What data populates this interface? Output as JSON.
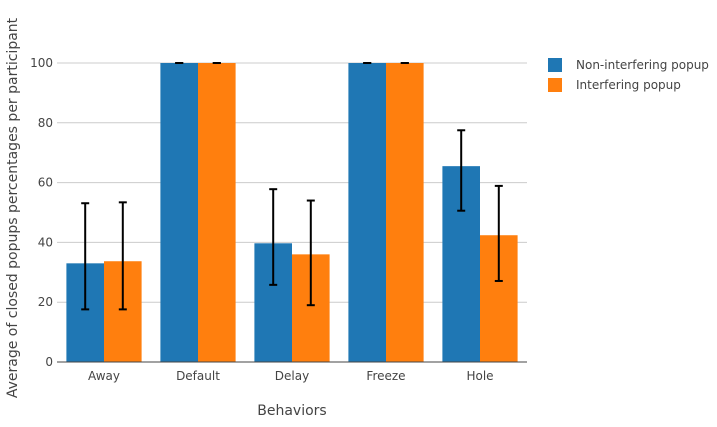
{
  "chart_data": {
    "type": "bar",
    "categories": [
      "Away",
      "Default",
      "Delay",
      "Freeze",
      "Hole"
    ],
    "series": [
      {
        "name": "Non-interfering popup",
        "color": "#1f77b4",
        "values": [
          33.0,
          100,
          39.7,
          100,
          65.5
        ],
        "error_low": [
          17.6,
          100,
          25.8,
          100,
          50.6
        ],
        "error_high": [
          53.1,
          100,
          57.8,
          100,
          77.5
        ]
      },
      {
        "name": "Interfering popup",
        "color": "#ff7f0e",
        "values": [
          33.7,
          100,
          36.0,
          100,
          42.4
        ],
        "error_low": [
          17.6,
          100,
          19.0,
          100,
          27.1
        ],
        "error_high": [
          53.4,
          100,
          54.0,
          100,
          58.9
        ]
      }
    ],
    "xlabel": "Behaviors",
    "ylabel": "Average of closed popups percentages per participant",
    "ylim": [
      0,
      110
    ],
    "yticks": [
      0,
      20,
      40,
      60,
      80,
      100
    ],
    "grid": true,
    "legend_position": "top-right"
  }
}
